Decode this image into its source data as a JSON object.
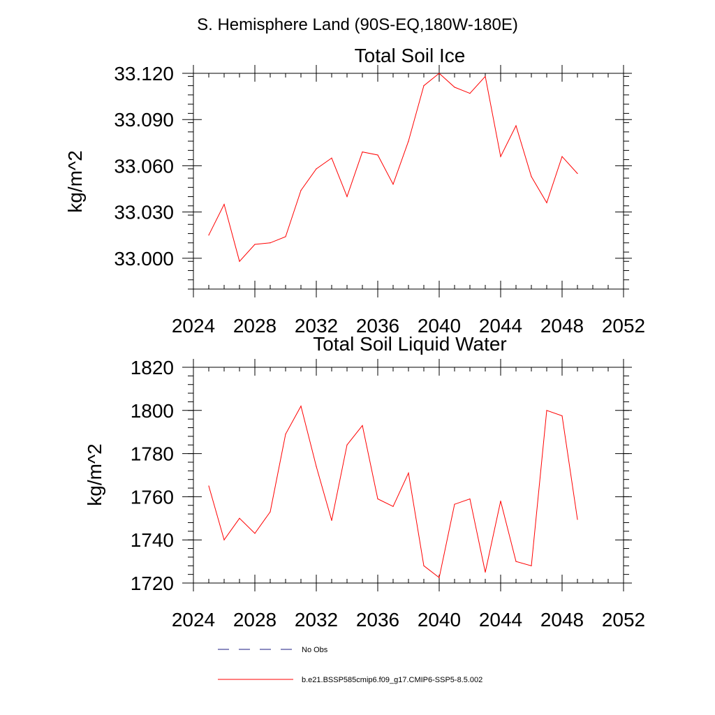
{
  "suptitle": "S. Hemisphere Land (90S-EQ,180W-180E)",
  "chart_data": [
    {
      "type": "line",
      "title": "Total Soil Ice",
      "ylabel": "kg/m^2",
      "xlabel": "",
      "xlim": [
        2024,
        2052
      ],
      "ylim": [
        32.98,
        33.12
      ],
      "xticks": [
        "2024",
        "2028",
        "2032",
        "2036",
        "2040",
        "2044",
        "2048",
        "2052"
      ],
      "yticks": [
        "33.000",
        "33.030",
        "33.060",
        "33.090",
        "33.120"
      ],
      "grid": false,
      "series": [
        {
          "name": "b.e21.BSSP585cmip6.f09_g17.CMIP6-SSP5-8.5.002",
          "color": "#ff0000",
          "x": [
            2025,
            2026,
            2027,
            2028,
            2029,
            2030,
            2031,
            2032,
            2033,
            2034,
            2035,
            2036,
            2037,
            2038,
            2039,
            2040,
            2041,
            2042,
            2043,
            2044,
            2045,
            2046,
            2047,
            2048,
            2049
          ],
          "values": [
            33.015,
            33.035,
            32.998,
            33.009,
            33.01,
            33.014,
            33.044,
            33.058,
            33.065,
            33.04,
            33.069,
            33.067,
            33.048,
            33.076,
            33.112,
            33.12,
            33.111,
            33.107,
            33.118,
            33.066,
            33.086,
            33.053,
            33.036,
            33.066,
            33.055
          ]
        }
      ]
    },
    {
      "type": "line",
      "title": "Total Soil Liquid Water",
      "ylabel": "kg/m^2",
      "xlabel": "",
      "xlim": [
        2024,
        2052
      ],
      "ylim": [
        1720,
        1820
      ],
      "xticks": [
        "2024",
        "2028",
        "2032",
        "2036",
        "2040",
        "2044",
        "2048",
        "2052"
      ],
      "yticks": [
        "1720",
        "1740",
        "1760",
        "1780",
        "1800",
        "1820"
      ],
      "grid": false,
      "series": [
        {
          "name": "b.e21.BSSP585cmip6.f09_g17.CMIP6-SSP5-8.5.002",
          "color": "#ff0000",
          "x": [
            2025,
            2026,
            2027,
            2028,
            2029,
            2030,
            2031,
            2032,
            2033,
            2034,
            2035,
            2036,
            2037,
            2038,
            2039,
            2040,
            2041,
            2042,
            2043,
            2044,
            2045,
            2046,
            2047,
            2048,
            2049
          ],
          "values": [
            1765,
            1740,
            1750,
            1743,
            1753,
            1789,
            1802,
            1774,
            1749,
            1784,
            1793,
            1759,
            1755.5,
            1771,
            1728,
            1722.5,
            1756.5,
            1759,
            1725,
            1758,
            1730,
            1728,
            1800,
            1797.5,
            1749.5
          ]
        }
      ]
    }
  ],
  "legend": {
    "placement": "bottom",
    "items": [
      {
        "label": "No Obs",
        "style": "dashed",
        "color": "#1a1a80"
      },
      {
        "label": "b.e21.BSSP585cmip6.f09_g17.CMIP6-SSP5-8.5.002",
        "style": "solid",
        "color": "#ff0000"
      }
    ]
  }
}
